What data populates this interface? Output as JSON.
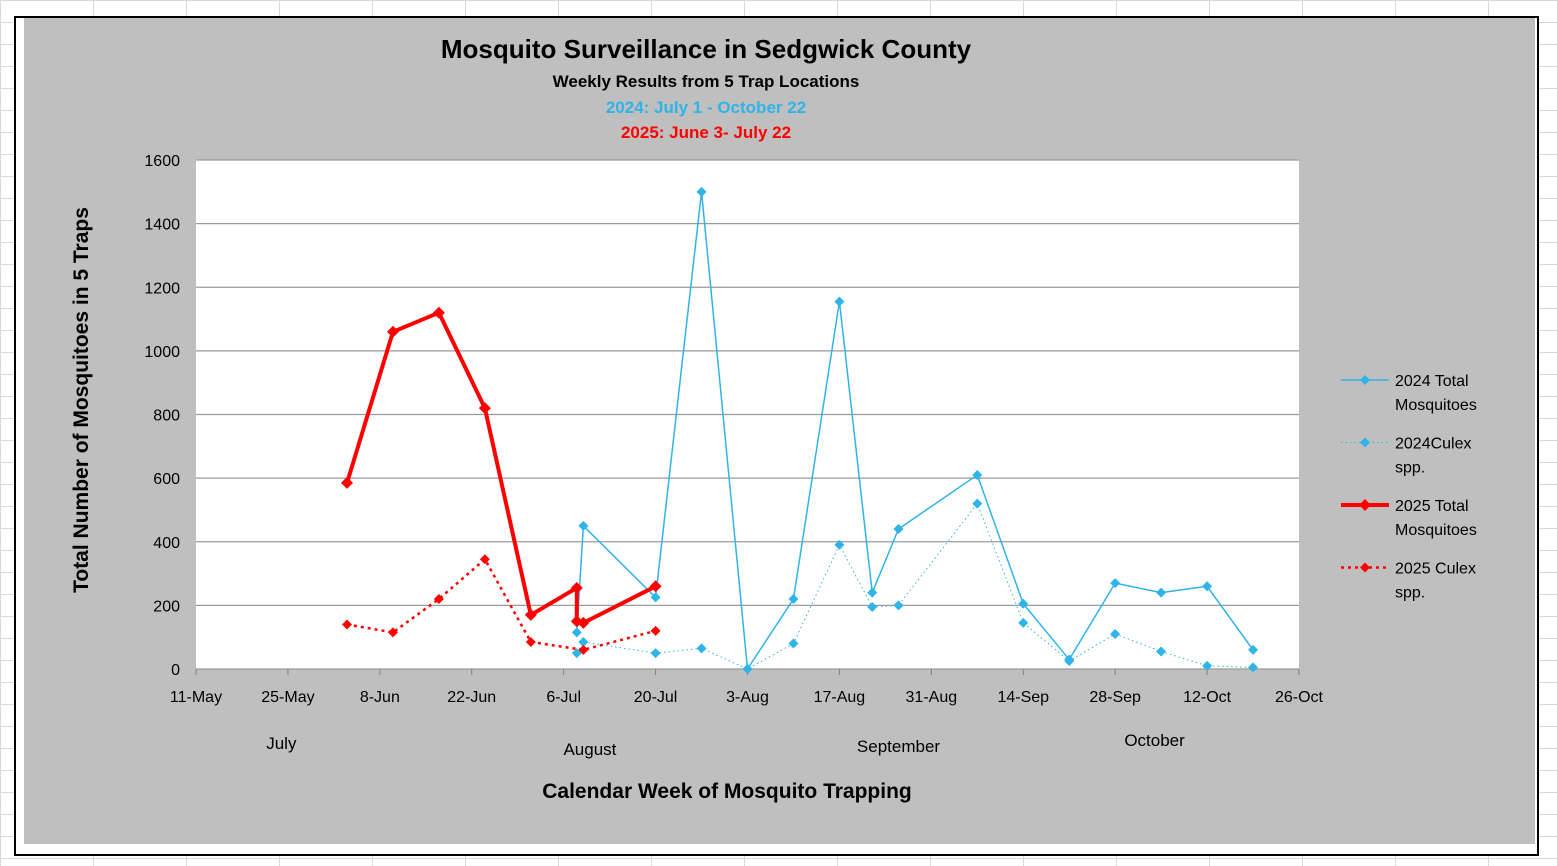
{
  "chart_data": {
    "type": "line",
    "title": "Mosquito Surveillance in Sedgwick County",
    "subtitle": "Weekly Results from 5 Trap Locations",
    "subtitle_2024": "2024: July 1 - October 22",
    "subtitle_2025": "2025: June  3- July 22",
    "xlabel": "Calendar Week of Mosquito Trapping",
    "ylabel": "Total Number of Mosquitoes in 5 Traps",
    "ylim": [
      0,
      1600
    ],
    "yticks": [
      0,
      200,
      400,
      600,
      800,
      1000,
      1200,
      1400,
      1600
    ],
    "xlim": [
      "2025-05-11",
      "2025-10-26"
    ],
    "xtick_dates": [
      "2025-05-11",
      "2025-05-25",
      "2025-06-08",
      "2025-06-22",
      "2025-07-06",
      "2025-07-20",
      "2025-08-03",
      "2025-08-17",
      "2025-08-31",
      "2025-09-14",
      "2025-09-28",
      "2025-10-12",
      "2025-10-26"
    ],
    "xticks": [
      "11-May",
      "25-May",
      "8-Jun",
      "22-Jun",
      "6-Jul",
      "20-Jul",
      "3-Aug",
      "17-Aug",
      "31-Aug",
      "14-Sep",
      "28-Sep",
      "12-Oct",
      "26-Oct"
    ],
    "month_labels": [
      {
        "label": "July",
        "date": "2025-05-24",
        "row": 0
      },
      {
        "label": "August",
        "date": "2025-07-10",
        "row": 1
      },
      {
        "label": "September",
        "date": "2025-08-26",
        "row": 0.5
      },
      {
        "label": "October",
        "date": "2025-10-04",
        "row": -0.5
      }
    ],
    "grid": true,
    "legend_position": "right",
    "series": [
      {
        "name": "2024 Total Mosquitoes",
        "legend_lines": [
          "2024 Total",
          "Mosquitoes"
        ],
        "color": "#2eb4e8",
        "style": "solid",
        "width": 1.5,
        "points": [
          [
            "2025-07-08",
            115
          ],
          [
            "2025-07-09",
            450
          ],
          [
            "2025-07-20",
            225
          ],
          [
            "2025-07-27",
            1500
          ],
          [
            "2025-08-03",
            0
          ],
          [
            "2025-08-10",
            220
          ],
          [
            "2025-08-17",
            1155
          ],
          [
            "2025-08-22",
            240
          ],
          [
            "2025-08-26",
            440
          ],
          [
            "2025-09-07",
            610
          ],
          [
            "2025-09-14",
            205
          ],
          [
            "2025-09-21",
            30
          ],
          [
            "2025-09-28",
            270
          ],
          [
            "2025-10-05",
            240
          ],
          [
            "2025-10-12",
            260
          ],
          [
            "2025-10-19",
            60
          ]
        ]
      },
      {
        "name": "2024Culex spp.",
        "legend_lines": [
          "2024Culex",
          "spp."
        ],
        "color": "#2eb4e8",
        "style": "dotted",
        "width": 1,
        "points": [
          [
            "2025-07-08",
            50
          ],
          [
            "2025-07-09",
            85
          ],
          [
            "2025-07-20",
            50
          ],
          [
            "2025-07-27",
            65
          ],
          [
            "2025-08-03",
            0
          ],
          [
            "2025-08-10",
            80
          ],
          [
            "2025-08-17",
            390
          ],
          [
            "2025-08-22",
            195
          ],
          [
            "2025-08-26",
            200
          ],
          [
            "2025-09-07",
            520
          ],
          [
            "2025-09-14",
            145
          ],
          [
            "2025-09-21",
            25
          ],
          [
            "2025-09-28",
            110
          ],
          [
            "2025-10-05",
            55
          ],
          [
            "2025-10-12",
            10
          ],
          [
            "2025-10-19",
            5
          ]
        ]
      },
      {
        "name": "2025 Total Mosquitoes",
        "legend_lines": [
          "2025 Total",
          "Mosquitoes"
        ],
        "color": "#ff0000",
        "style": "solid",
        "width": 4,
        "points": [
          [
            "2025-06-03",
            585
          ],
          [
            "2025-06-10",
            1060
          ],
          [
            "2025-06-17",
            1120
          ],
          [
            "2025-06-24",
            820
          ],
          [
            "2025-07-01",
            170
          ],
          [
            "2025-07-08",
            255
          ],
          [
            "2025-07-08",
            150
          ],
          [
            "2025-07-09",
            145
          ],
          [
            "2025-07-20",
            260
          ]
        ]
      },
      {
        "name": "2025 Culex spp.",
        "legend_lines": [
          "2025 Culex",
          "spp."
        ],
        "color": "#ff0000",
        "style": "dotted",
        "width": 2.5,
        "points": [
          [
            "2025-06-03",
            140
          ],
          [
            "2025-06-10",
            115
          ],
          [
            "2025-06-17",
            220
          ],
          [
            "2025-06-24",
            345
          ],
          [
            "2025-07-01",
            85
          ],
          [
            "2025-07-09",
            60
          ],
          [
            "2025-07-20",
            120
          ]
        ]
      }
    ]
  }
}
